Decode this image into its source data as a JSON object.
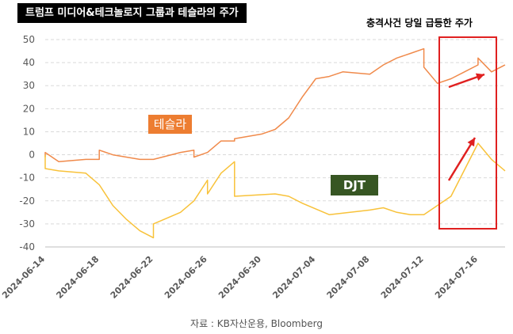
{
  "title": "트럼프 미디어&테크놀로지 그룹과 테슬라의 주가",
  "annotation": "충격사건 당일 급등한 주가",
  "source": "자료 : KB자산운용, Bloomberg",
  "colors": {
    "tesla": "#F08A4B",
    "djt": "#F8C23A",
    "tesla_label_bg": "#ED7D31",
    "djt_label_bg": "#375623",
    "highlight": "#E02020",
    "grid": "#D9D9D9",
    "axis_text": "#595959"
  },
  "chart_data": {
    "type": "line",
    "ylim": [
      -40,
      50
    ],
    "yticks": [
      50,
      40,
      30,
      20,
      10,
      0,
      -10,
      -20,
      -30,
      -40
    ],
    "xlim": [
      "2024-06-14",
      "2024-07-18"
    ],
    "xtick_labels": [
      "2024-06-14",
      "2024-06-18",
      "2024-06-22",
      "2024-06-26",
      "2024-06-30",
      "2024-07-04",
      "2024-07-08",
      "2024-07-12",
      "2024-07-16"
    ],
    "grid": true,
    "series": [
      {
        "name": "테슬라",
        "x": [
          "2024-06-14",
          "2024-06-14",
          "2024-06-15",
          "2024-06-17",
          "2024-06-18",
          "2024-06-18",
          "2024-06-19",
          "2024-06-21",
          "2024-06-22",
          "2024-06-24",
          "2024-06-25",
          "2024-06-25",
          "2024-06-26",
          "2024-06-27",
          "2024-06-28",
          "2024-06-28",
          "2024-06-30",
          "2024-07-01",
          "2024-07-02",
          "2024-07-03",
          "2024-07-04",
          "2024-07-05",
          "2024-07-06",
          "2024-07-08",
          "2024-07-09",
          "2024-07-10",
          "2024-07-11",
          "2024-07-12",
          "2024-07-12",
          "2024-07-13",
          "2024-07-14",
          "2024-07-15",
          "2024-07-16",
          "2024-07-16",
          "2024-07-17",
          "2024-07-18"
        ],
        "values": [
          -1,
          1,
          -3,
          -2,
          -2,
          2,
          0,
          -2,
          -2,
          1,
          2,
          -1,
          1,
          6,
          6,
          7,
          9,
          11,
          16,
          25,
          33,
          34,
          36,
          35,
          39,
          42,
          44,
          46,
          38,
          31,
          33,
          36,
          39,
          42,
          36,
          39
        ]
      },
      {
        "name": "DJT",
        "x": [
          "2024-06-14",
          "2024-06-14",
          "2024-06-15",
          "2024-06-17",
          "2024-06-18",
          "2024-06-19",
          "2024-06-20",
          "2024-06-21",
          "2024-06-22",
          "2024-06-22",
          "2024-06-24",
          "2024-06-25",
          "2024-06-26",
          "2024-06-26",
          "2024-06-27",
          "2024-06-28",
          "2024-06-28",
          "2024-07-01",
          "2024-07-02",
          "2024-07-03",
          "2024-07-05",
          "2024-07-08",
          "2024-07-09",
          "2024-07-10",
          "2024-07-11",
          "2024-07-12",
          "2024-07-13",
          "2024-07-14",
          "2024-07-16",
          "2024-07-17",
          "2024-07-18"
        ],
        "values": [
          0,
          -6,
          -7,
          -8,
          -13,
          -22,
          -28,
          -33,
          -36,
          -30,
          -25,
          -20,
          -11,
          -17,
          -8,
          -3,
          -18,
          -17,
          -18,
          -21,
          -26,
          -24,
          -23,
          -25,
          -26,
          -26,
          -22,
          -18,
          5,
          -2,
          -7
        ]
      }
    ],
    "labels": {
      "tesla": "테슬라",
      "djt": "DJT"
    }
  }
}
